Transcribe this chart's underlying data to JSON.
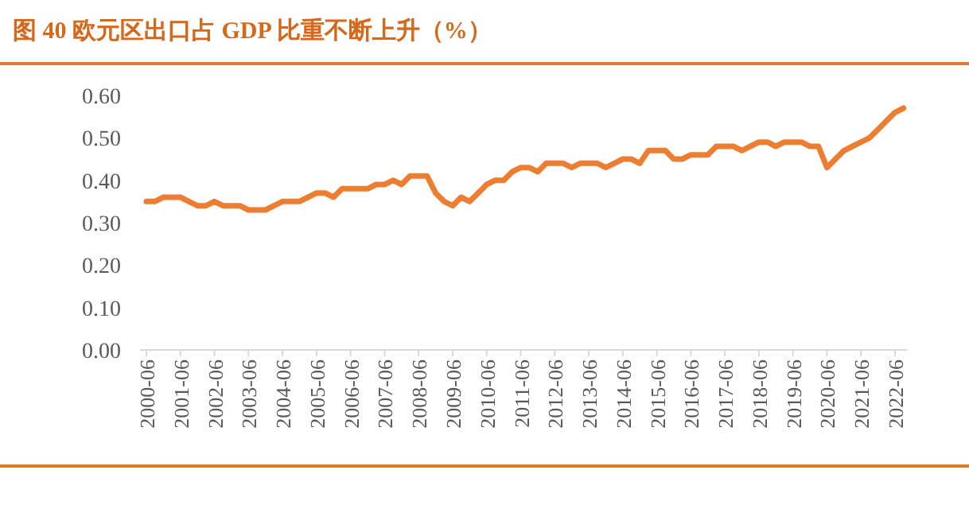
{
  "chart_data": {
    "type": "line",
    "title": "图 40  欧元区出口占 GDP 比重不断上升（%）",
    "categories": [
      "2000-06",
      null,
      null,
      null,
      "2001-06",
      null,
      null,
      null,
      "2002-06",
      null,
      null,
      null,
      "2003-06",
      null,
      null,
      null,
      "2004-06",
      null,
      null,
      null,
      "2005-06",
      null,
      null,
      null,
      "2006-06",
      null,
      null,
      null,
      "2007-06",
      null,
      null,
      null,
      "2008-06",
      null,
      null,
      null,
      "2009-06",
      null,
      null,
      null,
      "2010-06",
      null,
      null,
      null,
      "2011-06",
      null,
      null,
      null,
      "2012-06",
      null,
      null,
      null,
      "2013-06",
      null,
      null,
      null,
      "2014-06",
      null,
      null,
      null,
      "2015-06",
      null,
      null,
      null,
      "2016-06",
      null,
      null,
      null,
      "2017-06",
      null,
      null,
      null,
      "2018-06",
      null,
      null,
      null,
      "2019-06",
      null,
      null,
      null,
      "2020-06",
      null,
      null,
      null,
      "2021-06",
      null,
      null,
      null,
      "2022-06",
      null
    ],
    "series": [
      {
        "color": "#ed7d31",
        "values": [
          0.35,
          0.35,
          0.36,
          0.36,
          0.36,
          0.35,
          0.34,
          0.34,
          0.35,
          0.34,
          0.34,
          0.34,
          0.33,
          0.33,
          0.33,
          0.34,
          0.35,
          0.35,
          0.35,
          0.36,
          0.37,
          0.37,
          0.36,
          0.38,
          0.38,
          0.38,
          0.38,
          0.39,
          0.39,
          0.4,
          0.39,
          0.41,
          0.41,
          0.41,
          0.37,
          0.35,
          0.34,
          0.36,
          0.35,
          0.37,
          0.39,
          0.4,
          0.4,
          0.42,
          0.43,
          0.43,
          0.42,
          0.44,
          0.44,
          0.44,
          0.43,
          0.44,
          0.44,
          0.44,
          0.43,
          0.44,
          0.45,
          0.45,
          0.44,
          0.47,
          0.47,
          0.47,
          0.45,
          0.45,
          0.46,
          0.46,
          0.46,
          0.48,
          0.48,
          0.48,
          0.47,
          0.48,
          0.49,
          0.49,
          0.48,
          0.49,
          0.49,
          0.49,
          0.48,
          0.48,
          0.43,
          0.45,
          0.47,
          0.48,
          0.49,
          0.5,
          0.52,
          0.54,
          0.56,
          0.57
        ]
      }
    ],
    "ylim": [
      0,
      0.6
    ],
    "yticks": [
      {
        "value": 0,
        "label": "0.00"
      },
      {
        "value": 0.1,
        "label": "0.10"
      },
      {
        "value": 0.2,
        "label": "0.20"
      },
      {
        "value": 0.3,
        "label": "0.30"
      },
      {
        "value": 0.4,
        "label": "0.40"
      },
      {
        "value": 0.5,
        "label": "0.50"
      },
      {
        "value": 0.6,
        "label": "0.60"
      }
    ],
    "grid": false,
    "marker": "none",
    "line_style": "solid"
  }
}
